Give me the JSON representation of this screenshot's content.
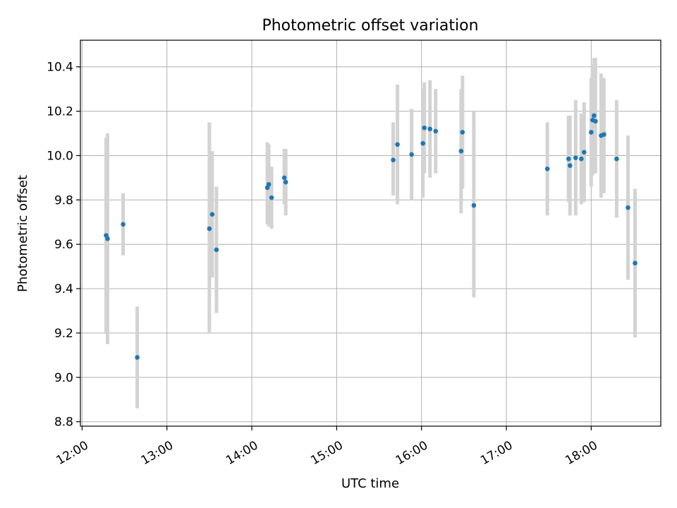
{
  "chart_data": {
    "type": "scatter",
    "title": "Photometric offset variation",
    "xlabel": "UTC time",
    "ylabel": "Photometric offset",
    "x_tick_labels": [
      "12:00",
      "13:00",
      "14:00",
      "15:00",
      "16:00",
      "17:00",
      "18:00"
    ],
    "x_ticks_hours": [
      12,
      13,
      14,
      15,
      16,
      17,
      18
    ],
    "xlim_hours": [
      11.98,
      18.82
    ],
    "y_tick_labels": [
      "8.8",
      "9.0",
      "9.2",
      "9.4",
      "9.6",
      "9.8",
      "10.0",
      "10.2",
      "10.4"
    ],
    "y_ticks": [
      8.8,
      9.0,
      9.2,
      9.4,
      9.6,
      9.8,
      10.0,
      10.2,
      10.4
    ],
    "ylim": [
      8.78,
      10.52
    ],
    "grid": true,
    "colors": {
      "points": "#1f77b4",
      "errorbars": "#d3d3d3",
      "grid": "#b0b0b0"
    },
    "points": [
      {
        "t": "12:17",
        "y": 9.64,
        "lo": 9.2,
        "hi": 10.08
      },
      {
        "t": "12:18",
        "y": 9.625,
        "lo": 9.15,
        "hi": 10.1
      },
      {
        "t": "12:29",
        "y": 9.69,
        "lo": 9.55,
        "hi": 9.83
      },
      {
        "t": "12:39",
        "y": 9.09,
        "lo": 8.86,
        "hi": 9.32
      },
      {
        "t": "13:30",
        "y": 9.67,
        "lo": 9.2,
        "hi": 10.15
      },
      {
        "t": "13:32",
        "y": 9.735,
        "lo": 9.45,
        "hi": 10.02
      },
      {
        "t": "13:35",
        "y": 9.575,
        "lo": 9.29,
        "hi": 9.86
      },
      {
        "t": "14:11",
        "y": 9.855,
        "lo": 9.69,
        "hi": 10.06
      },
      {
        "t": "14:12",
        "y": 9.87,
        "lo": 9.68,
        "hi": 10.05
      },
      {
        "t": "14:14",
        "y": 9.81,
        "lo": 9.67,
        "hi": 9.95
      },
      {
        "t": "14:23",
        "y": 9.9,
        "lo": 9.78,
        "hi": 10.03
      },
      {
        "t": "14:24",
        "y": 9.88,
        "lo": 9.73,
        "hi": 10.03
      },
      {
        "t": "15:40",
        "y": 9.98,
        "lo": 9.82,
        "hi": 10.15
      },
      {
        "t": "15:43",
        "y": 10.05,
        "lo": 9.78,
        "hi": 10.32
      },
      {
        "t": "15:53",
        "y": 10.005,
        "lo": 9.8,
        "hi": 10.21
      },
      {
        "t": "16:01",
        "y": 10.055,
        "lo": 9.81,
        "hi": 10.3
      },
      {
        "t": "16:02",
        "y": 10.125,
        "lo": 9.92,
        "hi": 10.33
      },
      {
        "t": "16:06",
        "y": 10.12,
        "lo": 9.9,
        "hi": 10.34
      },
      {
        "t": "16:10",
        "y": 10.11,
        "lo": 9.92,
        "hi": 10.3
      },
      {
        "t": "16:28",
        "y": 10.02,
        "lo": 9.74,
        "hi": 10.3
      },
      {
        "t": "16:29",
        "y": 10.105,
        "lo": 9.85,
        "hi": 10.36
      },
      {
        "t": "16:37",
        "y": 9.775,
        "lo": 9.36,
        "hi": 10.2
      },
      {
        "t": "17:29",
        "y": 9.94,
        "lo": 9.73,
        "hi": 10.15
      },
      {
        "t": "17:44",
        "y": 9.985,
        "lo": 9.79,
        "hi": 10.18
      },
      {
        "t": "17:45",
        "y": 9.955,
        "lo": 9.73,
        "hi": 10.18
      },
      {
        "t": "17:49",
        "y": 9.99,
        "lo": 9.73,
        "hi": 10.25
      },
      {
        "t": "17:53",
        "y": 9.985,
        "lo": 9.78,
        "hi": 10.19
      },
      {
        "t": "17:55",
        "y": 10.015,
        "lo": 9.79,
        "hi": 10.24
      },
      {
        "t": "18:00",
        "y": 10.105,
        "lo": 9.86,
        "hi": 10.35
      },
      {
        "t": "18:01",
        "y": 10.16,
        "lo": 9.91,
        "hi": 10.41
      },
      {
        "t": "18:02",
        "y": 10.18,
        "lo": 9.92,
        "hi": 10.44
      },
      {
        "t": "18:03",
        "y": 10.155,
        "lo": 9.92,
        "hi": 10.44
      },
      {
        "t": "18:07",
        "y": 10.09,
        "lo": 9.81,
        "hi": 10.37
      },
      {
        "t": "18:09",
        "y": 10.095,
        "lo": 9.83,
        "hi": 10.35
      },
      {
        "t": "18:18",
        "y": 9.985,
        "lo": 9.72,
        "hi": 10.25
      },
      {
        "t": "18:26",
        "y": 9.765,
        "lo": 9.44,
        "hi": 10.09
      },
      {
        "t": "18:31",
        "y": 9.515,
        "lo": 9.18,
        "hi": 9.85
      }
    ]
  }
}
